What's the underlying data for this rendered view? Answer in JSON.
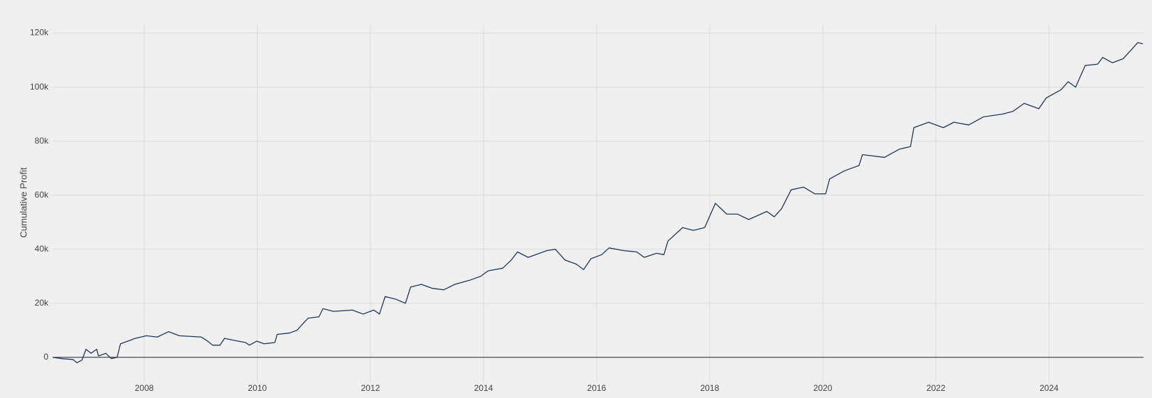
{
  "chart_data": {
    "type": "line",
    "y_label": "Cumulative Profit",
    "x": [
      2006.38,
      2006.55,
      2006.74,
      2006.81,
      2006.9,
      2006.97,
      2007.06,
      2007.16,
      2007.19,
      2007.32,
      2007.42,
      2007.52,
      2007.58,
      2007.71,
      2007.84,
      2008.04,
      2008.23,
      2008.43,
      2008.62,
      2009.01,
      2009.12,
      2009.21,
      2009.34,
      2009.42,
      2009.66,
      2009.79,
      2009.86,
      2009.99,
      2010.12,
      2010.31,
      2010.35,
      2010.57,
      2010.7,
      2010.83,
      2010.9,
      2011.09,
      2011.16,
      2011.35,
      2011.68,
      2011.87,
      2012.06,
      2012.16,
      2012.26,
      2012.45,
      2012.62,
      2012.71,
      2012.9,
      2013.1,
      2013.3,
      2013.49,
      2013.75,
      2013.95,
      2014.08,
      2014.34,
      2014.49,
      2014.6,
      2014.79,
      2015.12,
      2015.27,
      2015.44,
      2015.64,
      2015.77,
      2015.9,
      2016.09,
      2016.22,
      2016.48,
      2016.71,
      2016.84,
      2017.06,
      2017.19,
      2017.26,
      2017.52,
      2017.71,
      2017.91,
      2018.1,
      2018.3,
      2018.49,
      2018.69,
      2019.01,
      2019.14,
      2019.27,
      2019.44,
      2019.66,
      2019.86,
      2020.05,
      2020.12,
      2020.38,
      2020.64,
      2020.7,
      2021.09,
      2021.35,
      2021.55,
      2021.61,
      2021.87,
      2022.13,
      2022.32,
      2022.58,
      2022.84,
      2023.17,
      2023.36,
      2023.56,
      2023.82,
      2023.95,
      2024.21,
      2024.34,
      2024.47,
      2024.64,
      2024.86,
      2024.95,
      2025.12,
      2025.31,
      2025.44,
      2025.57,
      2025.66
    ],
    "series": [
      {
        "color": "#1f3a5f",
        "values": [
          0,
          -500,
          -800,
          -2000,
          -1000,
          3000,
          1500,
          3000,
          500,
          1500,
          -500,
          0,
          5000,
          6000,
          7000,
          8000,
          7500,
          9500,
          8000,
          7500,
          6000,
          4500,
          4500,
          7000,
          6000,
          5500,
          4500,
          6000,
          5000,
          5500,
          8500,
          9000,
          10000,
          13000,
          14500,
          15000,
          18000,
          17000,
          17500,
          16000,
          17500,
          16000,
          22500,
          21500,
          20000,
          26000,
          27000,
          25500,
          25000,
          27000,
          28500,
          30000,
          32000,
          33000,
          36000,
          39000,
          37000,
          39500,
          40000,
          36000,
          34500,
          32500,
          36500,
          38000,
          40500,
          39500,
          39000,
          37000,
          38500,
          38000,
          43000,
          48000,
          47000,
          48000,
          57000,
          53000,
          53000,
          51000,
          54000,
          52000,
          55000,
          62000,
          63000,
          60500,
          60500,
          66000,
          69000,
          71000,
          75000,
          74000,
          77000,
          78000,
          85000,
          87000,
          85000,
          87000,
          86000,
          89000,
          90000,
          91000,
          94000,
          92000,
          96000,
          99000,
          102000,
          100000,
          108000,
          108500,
          111000,
          109000,
          110500,
          113500,
          116500,
          116000
        ]
      }
    ],
    "xlim": [
      2006.38,
      2025.67
    ],
    "xticks": [
      2008,
      2010,
      2012,
      2014,
      2016,
      2018,
      2020,
      2022,
      2024
    ],
    "ylim": [
      -9000,
      123300
    ],
    "yticks": [
      0,
      {
        "value": 20000,
        "label": "20k"
      },
      {
        "value": 40000,
        "label": "40k"
      },
      {
        "value": 60000,
        "label": "60k"
      },
      {
        "value": 80000,
        "label": "80k"
      },
      {
        "value": 100000,
        "label": "100k"
      },
      {
        "value": 120000,
        "label": "120k"
      }
    ],
    "grid": true
  }
}
